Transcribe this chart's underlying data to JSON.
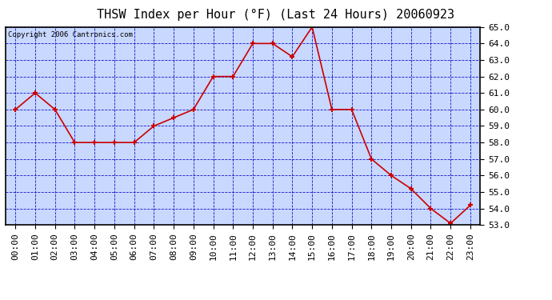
{
  "title": "THSW Index per Hour (°F) (Last 24 Hours) 20060923",
  "copyright_text": "Copyright 2006 Cantronics.com",
  "hours": [
    "00:00",
    "01:00",
    "02:00",
    "03:00",
    "04:00",
    "05:00",
    "06:00",
    "07:00",
    "08:00",
    "09:00",
    "10:00",
    "11:00",
    "12:00",
    "13:00",
    "14:00",
    "15:00",
    "16:00",
    "17:00",
    "18:00",
    "19:00",
    "20:00",
    "21:00",
    "22:00",
    "23:00"
  ],
  "values": [
    60.0,
    61.0,
    60.0,
    58.0,
    58.0,
    58.0,
    58.0,
    59.0,
    59.5,
    60.0,
    62.0,
    62.0,
    64.0,
    64.0,
    63.2,
    65.0,
    60.0,
    60.0,
    57.0,
    56.0,
    55.2,
    54.0,
    53.1,
    54.2
  ],
  "ylim": [
    53.0,
    65.0
  ],
  "ytick_min": 53.0,
  "ytick_max": 65.0,
  "ytick_step": 1.0,
  "line_color": "#cc0000",
  "marker_color": "#cc0000",
  "outer_bg_color": "#ffffff",
  "plot_bg_color": "#c8d8ff",
  "grid_color": "#0000bb",
  "title_color": "#000000",
  "title_fontsize": 11,
  "tick_fontsize": 8,
  "copyright_fontsize": 6.5
}
